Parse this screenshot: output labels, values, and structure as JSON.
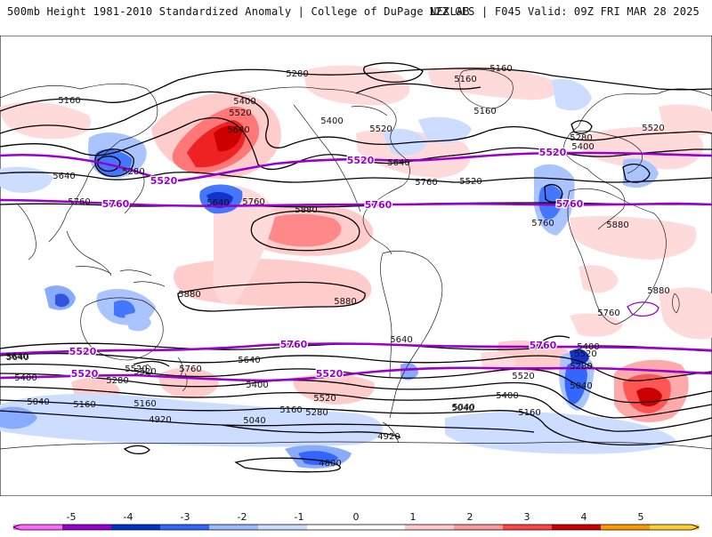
{
  "header": {
    "title": "500mb Height 1981-2010 Standardized Anomaly | College of DuPage NEXLAB",
    "run_info": "12Z GFS | F045 Valid: 09Z FRI MAR 28 2025"
  },
  "colors": {
    "contour": "#000000",
    "highlight_contour": "#9900cc",
    "coast": "#222222"
  },
  "map": {
    "projection": "equirectangular-global",
    "anomaly_regions": [
      {
        "id": "aleutian-high",
        "anom": 4
      },
      {
        "id": "gulf-alaska-high",
        "anom": 2
      },
      {
        "id": "hawaii-high",
        "anom": 3
      },
      {
        "id": "south-pacific-band",
        "anom": 2
      },
      {
        "id": "kamchatka-low",
        "anom": -3
      },
      {
        "id": "north-pacific-low",
        "anom": -3
      },
      {
        "id": "atlantic-low",
        "anom": -3
      },
      {
        "id": "south-atlantic-high",
        "anom": 4
      },
      {
        "id": "southwest-atlantic-low",
        "anom": -3
      },
      {
        "id": "antarctic-low",
        "anom": -3
      },
      {
        "id": "indian-low",
        "anom": -2
      },
      {
        "id": "canada-low",
        "anom": -1
      },
      {
        "id": "southern-ocean-low",
        "anom": -1
      }
    ],
    "contour_labels": [
      {
        "text": "5280"
      },
      {
        "text": "5160"
      },
      {
        "text": "5160"
      },
      {
        "text": "5160"
      },
      {
        "text": "5160"
      },
      {
        "text": "5400"
      },
      {
        "text": "5520"
      },
      {
        "text": "5640"
      },
      {
        "text": "5400"
      },
      {
        "text": "5520"
      },
      {
        "text": "5280"
      },
      {
        "text": "5640"
      },
      {
        "text": "5640"
      },
      {
        "text": "5760"
      },
      {
        "text": "5760"
      },
      {
        "text": "5640"
      },
      {
        "text": "5760"
      },
      {
        "text": "5520"
      },
      {
        "text": "5280"
      },
      {
        "text": "5400"
      },
      {
        "text": "5520"
      },
      {
        "text": "5760"
      },
      {
        "text": "5880"
      },
      {
        "text": "5880"
      },
      {
        "text": "5880"
      },
      {
        "text": "5880"
      },
      {
        "text": "5880"
      },
      {
        "text": "5760"
      },
      {
        "text": "5640"
      },
      {
        "text": "5520"
      },
      {
        "text": "5760"
      },
      {
        "text": "5640"
      },
      {
        "text": "5640"
      },
      {
        "text": "5400"
      },
      {
        "text": "5280"
      },
      {
        "text": "5400"
      },
      {
        "text": "5520"
      },
      {
        "text": "5520"
      },
      {
        "text": "5280"
      },
      {
        "text": "5160"
      },
      {
        "text": "5040"
      },
      {
        "text": "5160"
      },
      {
        "text": "4920"
      },
      {
        "text": "5040"
      },
      {
        "text": "5040"
      },
      {
        "text": "5160"
      },
      {
        "text": "5040"
      },
      {
        "text": "4920"
      },
      {
        "text": "4800"
      },
      {
        "text": "5640"
      },
      {
        "text": "5400"
      },
      {
        "text": "5160"
      },
      {
        "text": "5040"
      },
      {
        "text": "5520"
      },
      {
        "text": "5280"
      },
      {
        "text": "5520"
      },
      {
        "text": "5400"
      }
    ],
    "highlight_labels": [
      {
        "text": "5520"
      },
      {
        "text": "5520"
      },
      {
        "text": "5520"
      },
      {
        "text": "5760"
      },
      {
        "text": "5760"
      },
      {
        "text": "5760"
      },
      {
        "text": "5760"
      },
      {
        "text": "5760"
      },
      {
        "text": "5520"
      },
      {
        "text": "5520"
      },
      {
        "text": "5520"
      }
    ]
  },
  "colorbar": {
    "ticks": [
      "-5",
      "-4",
      "-3",
      "-2",
      "-1",
      "0",
      "1",
      "2",
      "3",
      "4",
      "5"
    ],
    "colors": [
      "#ff66ff",
      "#9900cc",
      "#0033cc",
      "#3366ff",
      "#99bbff",
      "#ccddff",
      "#ffffff",
      "#ffffff",
      "#ffcccc",
      "#ff9999",
      "#ff4444",
      "#cc0000",
      "#ff9900",
      "#ffcc33"
    ]
  }
}
